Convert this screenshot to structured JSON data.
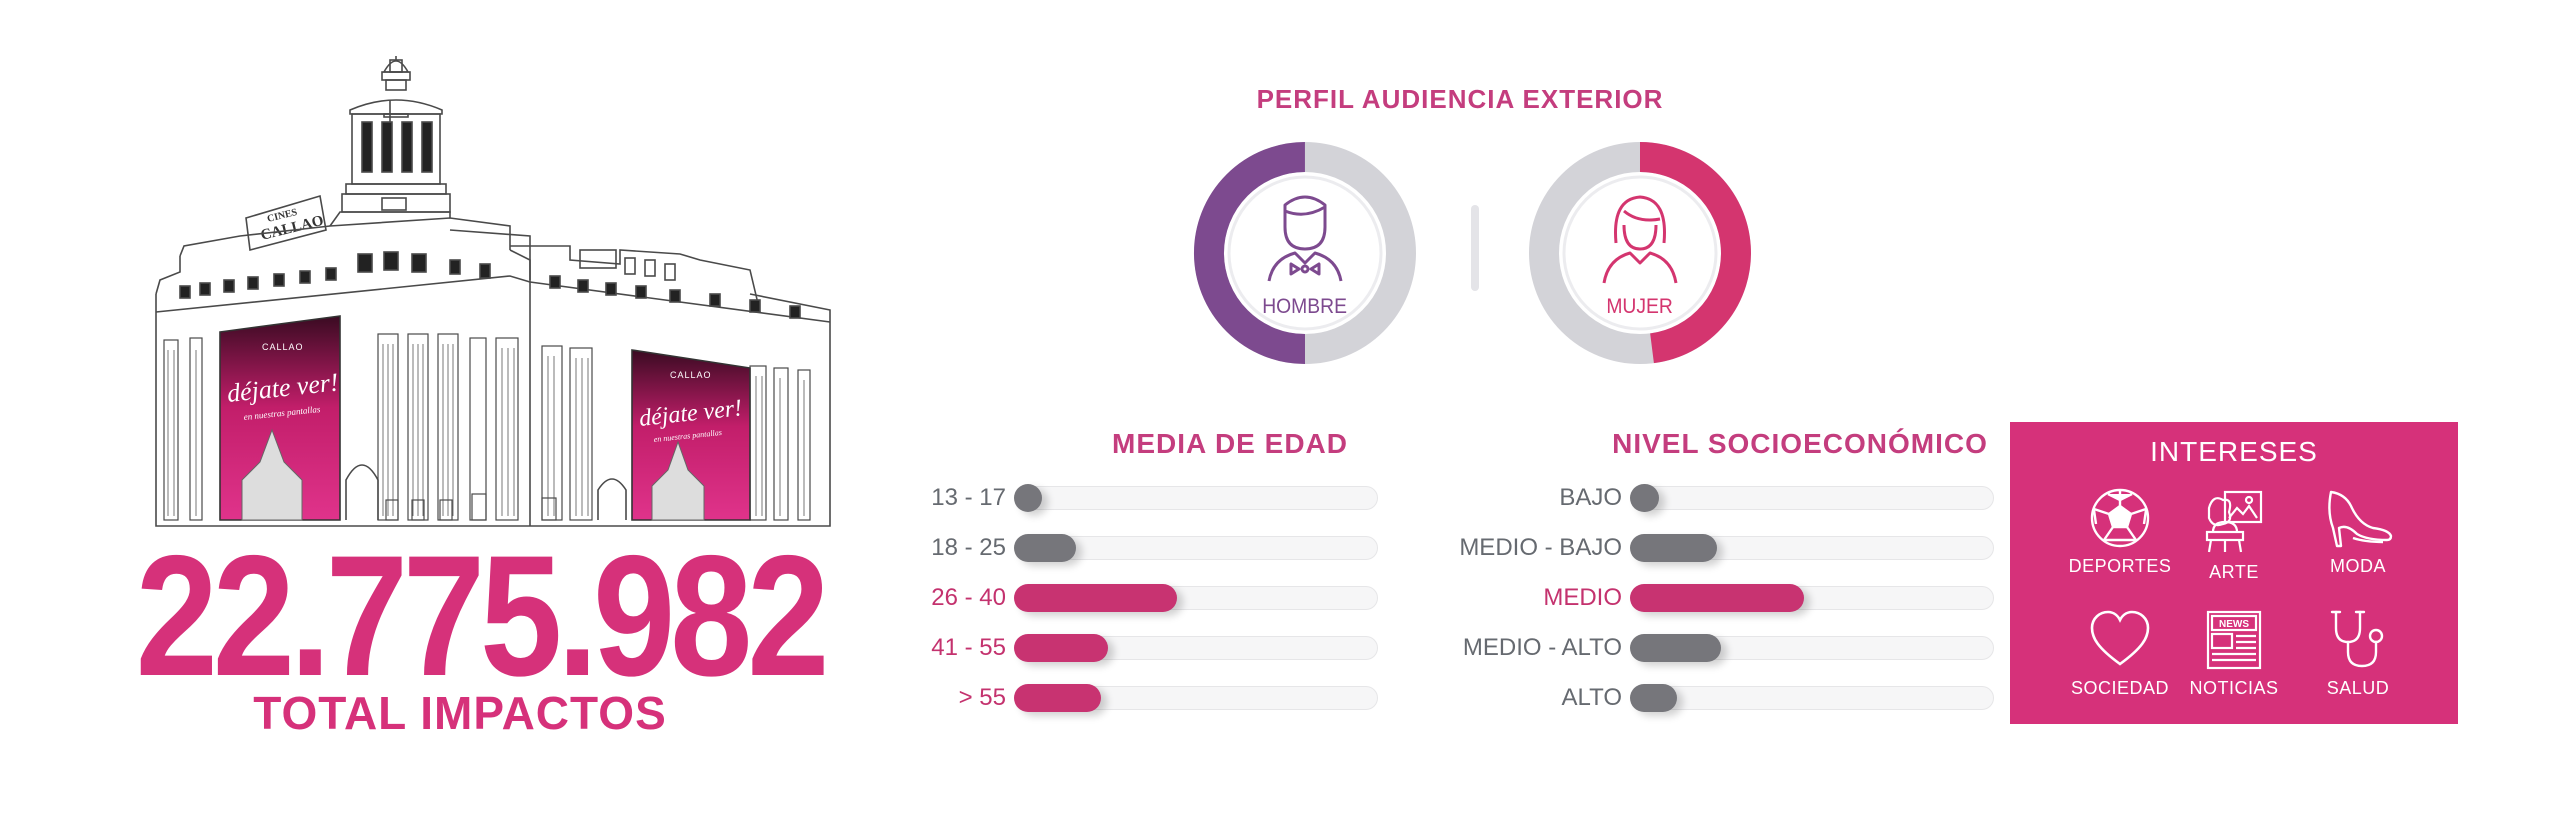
{
  "total": {
    "value": "22.775.982",
    "label": "TOTAL IMPACTOS"
  },
  "building": {
    "sign_line1": "CINES",
    "sign_line2": "CALLAO",
    "screen_brand": "CALLAO",
    "screen_text1": "déjate ver!",
    "screen_text2": "en nuestras pantallas"
  },
  "gender": {
    "title": "PERFIL AUDIENCIA EXTERIOR",
    "male": {
      "label": "HOMBRE",
      "share": 0.5,
      "color": "#7d4a8f"
    },
    "female": {
      "label": "MUJER",
      "share": 0.48,
      "color": "#d4356f"
    },
    "track_color": "#d3d3d8"
  },
  "chart_data": [
    {
      "type": "bar",
      "title": "MEDIA DE EDAD",
      "orientation": "horizontal",
      "categories": [
        "13 - 17",
        "18 - 25",
        "26 - 40",
        "41 - 55",
        "> 55"
      ],
      "values": [
        0.07,
        0.17,
        0.45,
        0.26,
        0.24
      ],
      "highlighted": [
        false,
        false,
        true,
        true,
        true
      ],
      "xlim": [
        0,
        1
      ]
    },
    {
      "type": "bar",
      "title": "NIVEL SOCIOECONÓMICO",
      "orientation": "horizontal",
      "categories": [
        "BAJO",
        "MEDIO - BAJO",
        "MEDIO",
        "MEDIO - ALTO",
        "ALTO"
      ],
      "values": [
        0.08,
        0.24,
        0.48,
        0.25,
        0.13
      ],
      "highlighted": [
        false,
        false,
        true,
        false,
        false
      ],
      "xlim": [
        0,
        1
      ]
    }
  ],
  "interests": {
    "title": "INTERESES",
    "items": [
      {
        "label": "DEPORTES",
        "icon": "soccer-ball-icon"
      },
      {
        "label": "ARTE",
        "icon": "art-icon"
      },
      {
        "label": "MODA",
        "icon": "high-heel-icon"
      },
      {
        "label": "SOCIEDAD",
        "icon": "heart-icon"
      },
      {
        "label": "NOTICIAS",
        "icon": "newspaper-icon"
      },
      {
        "label": "SALUD",
        "icon": "stethoscope-icon"
      }
    ]
  }
}
